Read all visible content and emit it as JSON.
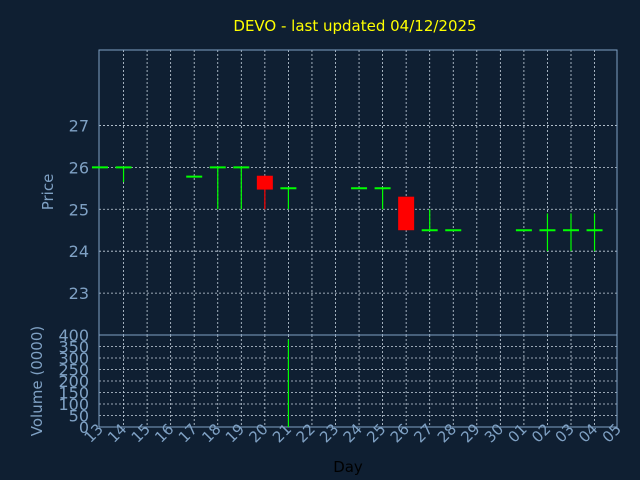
{
  "chart_data": {
    "type": "candlestick",
    "title": "DEVO - last updated 04/12/2025",
    "xlabel": "Day",
    "price_panel": {
      "ylabel": "Price",
      "yticks": [
        23,
        24,
        25,
        26,
        27
      ],
      "ylim": [
        22,
        28.8
      ],
      "grid": true
    },
    "volume_panel": {
      "ylabel": "Volume (0000)",
      "yticks": [
        0,
        50,
        100,
        150,
        200,
        250,
        300,
        350,
        400
      ],
      "ylim": [
        0,
        400
      ],
      "grid": true
    },
    "x_tick_labels": [
      "13",
      "14",
      "15",
      "16",
      "17",
      "18",
      "19",
      "20",
      "21",
      "22",
      "23",
      "24",
      "25",
      "26",
      "27",
      "28",
      "29",
      "30",
      "01",
      "02",
      "03",
      "04",
      "05"
    ],
    "candles": [
      {
        "day": "13",
        "open": 26.0,
        "high": 26.0,
        "low": 26.0,
        "close": 26.0
      },
      {
        "day": "14",
        "open": 26.0,
        "high": 26.0,
        "low": 25.65,
        "close": 26.0
      },
      {
        "day": "17",
        "open": 25.78,
        "high": 25.78,
        "low": 25.78,
        "close": 25.78
      },
      {
        "day": "18",
        "open": 26.0,
        "high": 26.0,
        "low": 25.0,
        "close": 26.0
      },
      {
        "day": "19",
        "open": 26.0,
        "high": 26.0,
        "low": 25.0,
        "close": 26.0
      },
      {
        "day": "20",
        "open": 25.8,
        "high": 25.8,
        "low": 25.0,
        "close": 25.47
      },
      {
        "day": "21",
        "open": 25.5,
        "high": 25.5,
        "low": 25.0,
        "close": 25.5
      },
      {
        "day": "24",
        "open": 25.5,
        "high": 25.5,
        "low": 25.5,
        "close": 25.5
      },
      {
        "day": "25",
        "open": 25.5,
        "high": 25.5,
        "low": 25.0,
        "close": 25.5
      },
      {
        "day": "26",
        "open": 25.3,
        "high": 25.3,
        "low": 24.5,
        "close": 24.5
      },
      {
        "day": "27",
        "open": 24.5,
        "high": 25.0,
        "low": 24.5,
        "close": 24.5
      },
      {
        "day": "28",
        "open": 24.5,
        "high": 24.5,
        "low": 24.5,
        "close": 24.5
      },
      {
        "day": "01",
        "open": 24.5,
        "high": 24.5,
        "low": 24.5,
        "close": 24.5
      },
      {
        "day": "02",
        "open": 24.5,
        "high": 24.9,
        "low": 24.0,
        "close": 24.5
      },
      {
        "day": "03",
        "open": 24.5,
        "high": 24.9,
        "low": 24.0,
        "close": 24.5
      },
      {
        "day": "04",
        "open": 24.5,
        "high": 24.9,
        "low": 24.0,
        "close": 24.5
      }
    ],
    "volume": [
      {
        "day": "21",
        "value": 380
      }
    ],
    "colors": {
      "background": "#0f1f32",
      "axis": "#7fa1c4",
      "grid": "#c8d4e0",
      "up": "#00ff00",
      "down": "#ff0000",
      "title": "#ffff00",
      "volume": "#00ff00"
    }
  }
}
